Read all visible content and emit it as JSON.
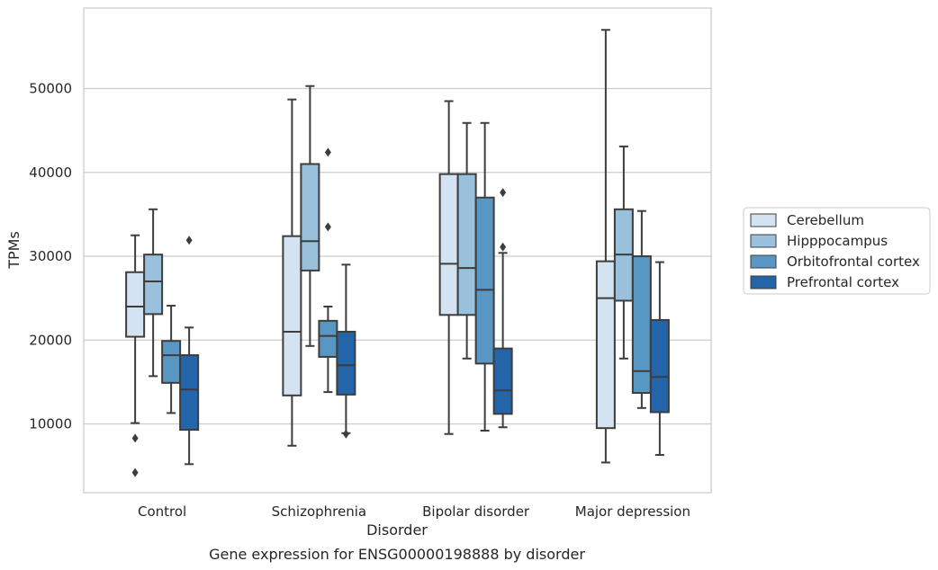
{
  "chart_data": {
    "type": "boxplot",
    "caption": "Gene expression for ENSG00000198888 by disorder",
    "xlabel": "Disorder",
    "ylabel": "TPMs",
    "ylim": [
      1800,
      59600
    ],
    "yticks": [
      10000,
      20000,
      30000,
      40000,
      50000
    ],
    "grid": "horizontal",
    "legend_position": "right",
    "categories": [
      "Control",
      "Schizophrenia",
      "Bipolar disorder",
      "Major depression"
    ],
    "series": [
      {
        "name": "Cerebellum",
        "color": "#d4e3f2",
        "boxes": [
          {
            "whisker_low": 10100,
            "q1": 20400,
            "median": 24000,
            "q3": 28100,
            "whisker_high": 32500,
            "outliers": [
              8300,
              4200
            ]
          },
          {
            "whisker_low": 7400,
            "q1": 13400,
            "median": 21000,
            "q3": 32400,
            "whisker_high": 48700,
            "outliers": []
          },
          {
            "whisker_low": 8800,
            "q1": 23000,
            "median": 29100,
            "q3": 39800,
            "whisker_high": 48500,
            "outliers": []
          },
          {
            "whisker_low": 5400,
            "q1": 9500,
            "median": 25000,
            "q3": 29400,
            "whisker_high": 57000,
            "outliers": []
          }
        ]
      },
      {
        "name": "Hipppocampus",
        "color": "#9ac1db",
        "boxes": [
          {
            "whisker_low": 15700,
            "q1": 23100,
            "median": 27000,
            "q3": 30200,
            "whisker_high": 35600,
            "outliers": []
          },
          {
            "whisker_low": 19300,
            "q1": 28300,
            "median": 31800,
            "q3": 41000,
            "whisker_high": 50300,
            "outliers": []
          },
          {
            "whisker_low": 17800,
            "q1": 23000,
            "median": 28600,
            "q3": 39800,
            "whisker_high": 45900,
            "outliers": []
          },
          {
            "whisker_low": 17800,
            "q1": 24700,
            "median": 30200,
            "q3": 35600,
            "whisker_high": 43100,
            "outliers": []
          }
        ]
      },
      {
        "name": "Orbitofrontal cortex",
        "color": "#5896c4",
        "boxes": [
          {
            "whisker_low": 11300,
            "q1": 14900,
            "median": 18200,
            "q3": 19900,
            "whisker_high": 24100,
            "outliers": []
          },
          {
            "whisker_low": 13800,
            "q1": 18000,
            "median": 20500,
            "q3": 22300,
            "whisker_high": 24000,
            "outliers": [
              42400,
              33500
            ]
          },
          {
            "whisker_low": 9200,
            "q1": 17200,
            "median": 26000,
            "q3": 37000,
            "whisker_high": 45900,
            "outliers": []
          },
          {
            "whisker_low": 11900,
            "q1": 13700,
            "median": 16300,
            "q3": 30000,
            "whisker_high": 35400,
            "outliers": []
          }
        ]
      },
      {
        "name": "Prefrontal cortex",
        "color": "#2464a8",
        "boxes": [
          {
            "whisker_low": 5200,
            "q1": 9300,
            "median": 14100,
            "q3": 18200,
            "whisker_high": 21500,
            "outliers": [
              31900
            ]
          },
          {
            "whisker_low": 8900,
            "q1": 13500,
            "median": 17000,
            "q3": 21000,
            "whisker_high": 29000,
            "outliers": [
              8800
            ]
          },
          {
            "whisker_low": 9600,
            "q1": 11200,
            "median": 14000,
            "q3": 19000,
            "whisker_high": 30400,
            "outliers": [
              37600,
              31100
            ]
          },
          {
            "whisker_low": 6300,
            "q1": 11400,
            "median": 15600,
            "q3": 22400,
            "whisker_high": 29300,
            "outliers": []
          }
        ]
      }
    ]
  }
}
